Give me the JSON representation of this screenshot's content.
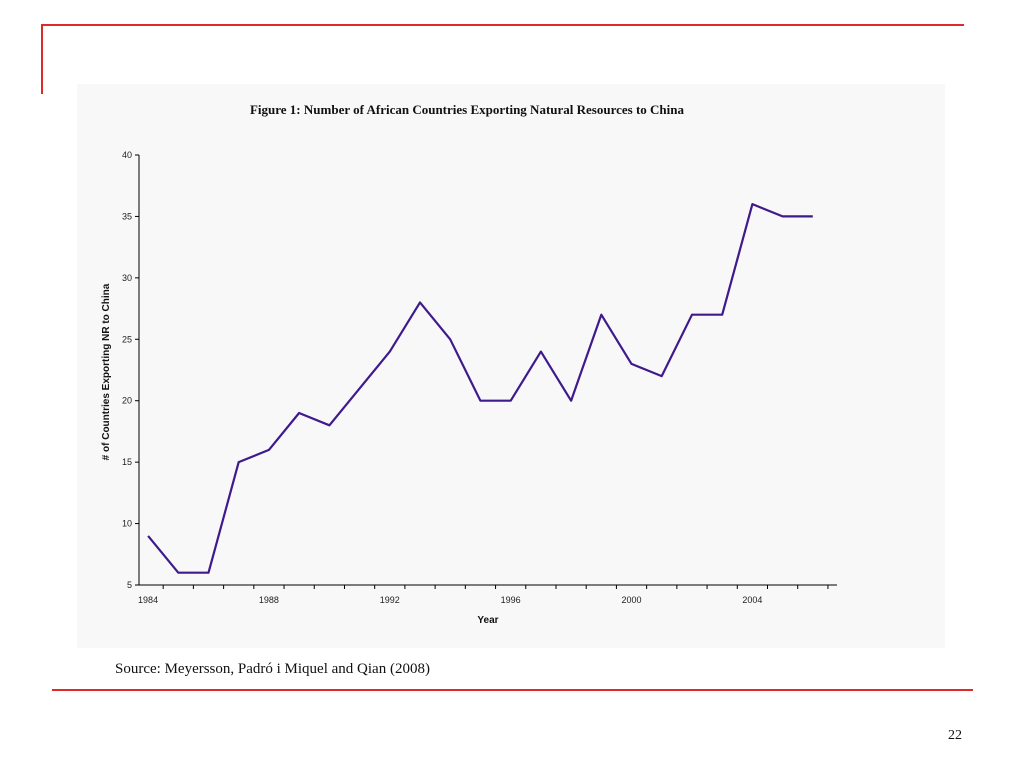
{
  "slide": {
    "source": "Source: Meyersson, Padró i Miquel and Qian (2008)",
    "page_number": "22",
    "accent_color": "#e02a2a"
  },
  "chart_data": {
    "type": "line",
    "title": "Figure 1: Number of African Countries Exporting Natural Resources to China",
    "xlabel": "Year",
    "ylabel": "# of Countries Exporting NR to China",
    "x": [
      1984,
      1985,
      1986,
      1987,
      1988,
      1989,
      1990,
      1991,
      1992,
      1993,
      1994,
      1995,
      1996,
      1997,
      1998,
      1999,
      2000,
      2001,
      2002,
      2003,
      2004,
      2005,
      2006
    ],
    "y": [
      9,
      6,
      6,
      15,
      16,
      19,
      18,
      21,
      24,
      28,
      25,
      20,
      20,
      24,
      20,
      27,
      23,
      22,
      27,
      27,
      36,
      35,
      35
    ],
    "xlim": [
      1983.7,
      2006.8
    ],
    "ylim": [
      5,
      40
    ],
    "x_ticks": [
      "1984",
      "1988",
      "1992",
      "1996",
      "2000",
      "2004"
    ],
    "y_ticks": [
      "5",
      "10",
      "15",
      "20",
      "25",
      "30",
      "35",
      "40"
    ],
    "line_color": "#3f1a8c",
    "grid": false,
    "legend": "none"
  }
}
